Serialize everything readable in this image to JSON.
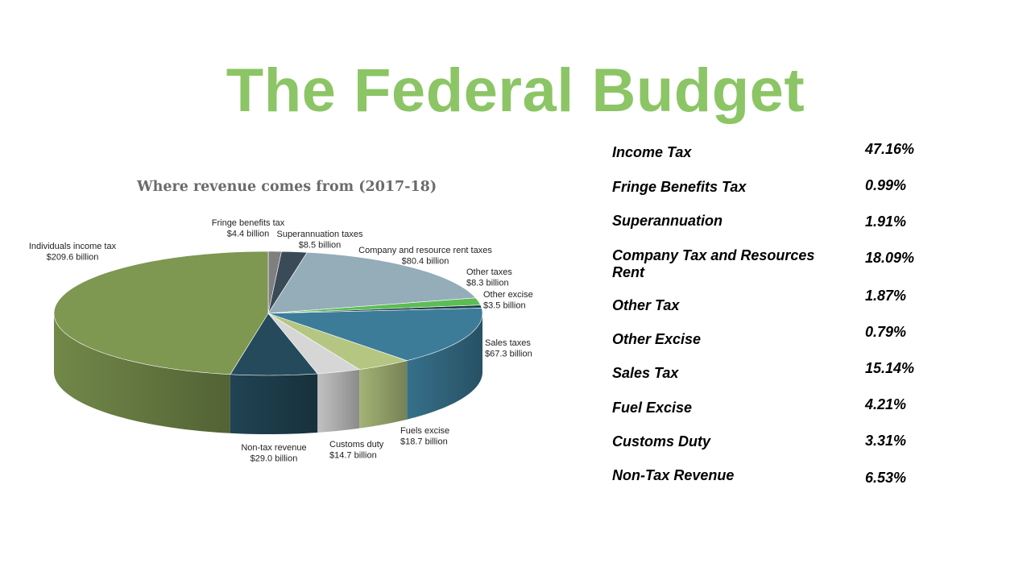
{
  "title": "The Federal Budget",
  "colors": {
    "title": "#8cc565",
    "chart_title": "#6b6b6b"
  },
  "chart_data": {
    "type": "pie",
    "title": "Where revenue comes from (2017-18)",
    "slices": [
      {
        "label": "Fringe benefits tax",
        "value_text": "$4.4 billion",
        "value": 4.4,
        "color": "#7f7f7f"
      },
      {
        "label": "Superannuation taxes",
        "value_text": "$8.5 billion",
        "value": 8.5,
        "color": "#3b4a57"
      },
      {
        "label": "Company and resource rent taxes",
        "value_text": "$80.4 billion",
        "value": 80.4,
        "color": "#94adb8"
      },
      {
        "label": "Other taxes",
        "value_text": "$8.3 billion",
        "value": 8.3,
        "color": "#5cbd55"
      },
      {
        "label": "Other excise",
        "value_text": "$3.5 billion",
        "value": 3.5,
        "color": "#1f3f4a"
      },
      {
        "label": "Sales taxes",
        "value_text": "$67.3 billion",
        "value": 67.3,
        "color": "#3c7c99"
      },
      {
        "label": "Fuels excise",
        "value_text": "$18.7 billion",
        "value": 18.7,
        "color": "#b5c682"
      },
      {
        "label": "Customs duty",
        "value_text": "$14.7 billion",
        "value": 14.7,
        "color": "#d6d6d6"
      },
      {
        "label": "Non-tax revenue",
        "value_text": "$29.0 billion",
        "value": 29.0,
        "color": "#244a5c"
      },
      {
        "label": "Individuals income tax",
        "value_text": "$209.6 billion",
        "value": 209.6,
        "color": "#7e9751"
      }
    ]
  },
  "table": {
    "rows": [
      {
        "name": "Income Tax",
        "pct": "47.16%"
      },
      {
        "name": "Fringe Benefits Tax",
        "pct": "0.99%"
      },
      {
        "name": "Superannuation",
        "pct": "1.91%"
      },
      {
        "name": "Company Tax and Resources Rent",
        "pct": "18.09%"
      },
      {
        "name": "Other Tax",
        "pct": "1.87%"
      },
      {
        "name": "Other Excise",
        "pct": "0.79%"
      },
      {
        "name": "Sales Tax",
        "pct": "15.14%"
      },
      {
        "name": "Fuel Excise",
        "pct": "4.21%"
      },
      {
        "name": "Customs Duty",
        "pct": "3.31%"
      },
      {
        "name": "Non-Tax Revenue",
        "pct": "6.53%"
      }
    ]
  }
}
